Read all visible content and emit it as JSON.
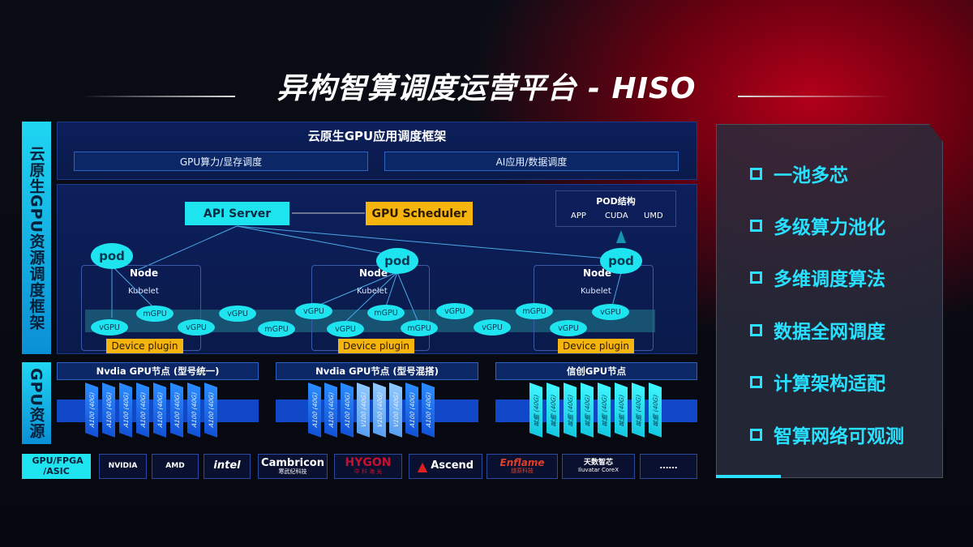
{
  "title": "异构智算调度运营平台 - HISO",
  "left_labels": {
    "framework": "云原生GPU资源调度框架",
    "resources": "GPU资源",
    "chips": "GPU/FPGA /ASIC"
  },
  "top_panel": {
    "title": "云原生GPU应用调度框架",
    "boxes": [
      "GPU算力/显存调度",
      "AI应用/数据调度"
    ]
  },
  "api_server": "API Server",
  "gpu_scheduler": "GPU Scheduler",
  "pod_structure": {
    "title": "POD结构",
    "items": [
      "APP",
      "CUDA",
      "UMD"
    ]
  },
  "nodes": [
    {
      "label": "Node",
      "kubelet": "Kubelet",
      "pod": "pod",
      "plugin": "Device plugin"
    },
    {
      "label": "Node",
      "kubelet": "Kubelet",
      "pod": "pod",
      "plugin": "Device plugin"
    },
    {
      "label": "Node",
      "kubelet": "Kubelet",
      "pod": "pod",
      "plugin": "Device plugin"
    }
  ],
  "virtual_gpus": [
    "vGPU",
    "mGPU",
    "vGPU",
    "vGPU",
    "mGPU",
    "vGPU",
    "mGPU",
    "vGPU",
    "mGPU",
    "vGPU",
    "vGPU",
    "mGPU",
    "vGPU",
    "vGPU"
  ],
  "gpu_groups": [
    {
      "title": "Nvdia GPU节点 (型号统一)",
      "cards": [
        "A100 (40G)",
        "A100 (40G)",
        "A100 (40G)",
        "A100 (40G)",
        "A100 (40G)",
        "A100 (40G)",
        "A100 (40G)",
        "A100 (40G)"
      ]
    },
    {
      "title": "Nvdia GPU节点 (型号混搭)",
      "cards": [
        "A100 (40G)",
        "A100 (40G)",
        "A100 (40G)",
        "V100 (40G)",
        "V100 (40G)",
        "V100 (40G)",
        "A100 (40G)",
        "A100 (40G)"
      ]
    },
    {
      "title": "信创GPU节点",
      "cards": [
        "昇腾 (40G)",
        "昇腾 (40G)",
        "昇腾 (40G)",
        "昇腾 (40G)",
        "昇腾 (40G)",
        "昇腾 (40G)",
        "昇腾 (40G)",
        "昇腾 (40G)"
      ]
    }
  ],
  "vendors": [
    {
      "name": "NVIDIA",
      "sub": ""
    },
    {
      "name": "AMD",
      "sub": ""
    },
    {
      "name": "intel",
      "sub": ""
    },
    {
      "name": "Cambricon",
      "sub": "寒武纪科技"
    },
    {
      "name": "HYGON",
      "sub": "中 科 海 光"
    },
    {
      "name": "Ascend",
      "sub": ""
    },
    {
      "name": "Enflame",
      "sub": "燧原科技"
    },
    {
      "name": "天数智芯",
      "sub": "Iluvatar CoreX"
    },
    {
      "name": "……",
      "sub": ""
    }
  ],
  "features": [
    "一池多芯",
    "多级算力池化",
    "多维调度算法",
    "数据全网调度",
    "计算架构适配",
    "智算网络可观测"
  ],
  "colors": {
    "cyan": "#1ee4ef",
    "orange": "#f6b40e",
    "blue": "#1352d6",
    "accent_text": "#28e0ff"
  }
}
